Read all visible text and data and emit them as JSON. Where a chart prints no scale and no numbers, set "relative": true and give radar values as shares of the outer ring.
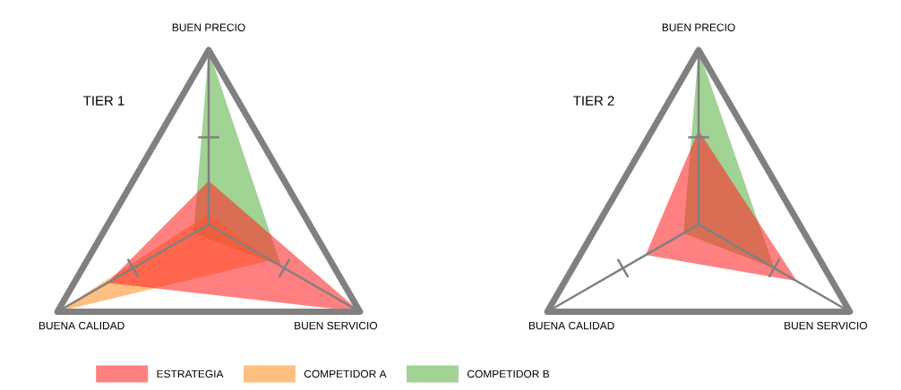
{
  "chart_data": [
    {
      "type": "radar",
      "title": "TIER 1",
      "relative": true,
      "legend": "bottom",
      "categories": [
        "BUEN PRECIO",
        "BUEN SERVICIO",
        "BUENA CALIDAD"
      ],
      "series": [
        {
          "name": "ESTRATEGIA",
          "color": "#ff8080",
          "values": [
            0.25,
            1.0,
            0.67
          ]
        },
        {
          "name": "COMPETIDOR A",
          "color": "#ffbf80",
          "values": [
            0.06,
            0.41,
            1.0
          ]
        },
        {
          "name": "COMPETIDOR B",
          "color": "#a1d394",
          "values": [
            1.0,
            0.48,
            0.1
          ]
        }
      ]
    },
    {
      "type": "radar",
      "title": "TIER 2",
      "relative": true,
      "categories": [
        "BUEN PRECIO",
        "BUEN SERVICIO",
        "BUENA CALIDAD"
      ],
      "series": [
        {
          "color": "#ff8080",
          "values": [
            0.54,
            0.65,
            0.35
          ]
        },
        {
          "color": "#a1d394",
          "values": [
            1.0,
            0.5,
            0.1
          ]
        }
      ]
    }
  ]
}
